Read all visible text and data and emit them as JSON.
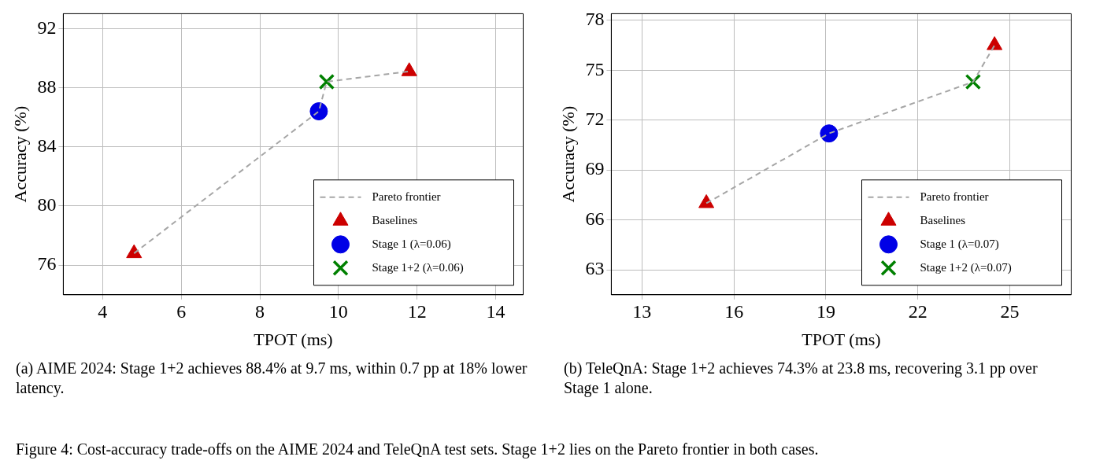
{
  "chart_data": [
    {
      "type": "scatter",
      "xlabel": "TPOT (ms)",
      "ylabel": "Accuracy (%)",
      "xlim": [
        3,
        14.7
      ],
      "xticks": [
        4,
        6,
        8,
        10,
        12,
        14
      ],
      "ylim": [
        74,
        93
      ],
      "yticks": [
        76,
        80,
        84,
        88,
        92
      ],
      "grid": true,
      "legend": "bottom right",
      "series": [
        {
          "name": "Pareto frontier",
          "type": "line",
          "line_style": "dashed",
          "marker": "none",
          "color": "#a6a6a6",
          "x": [
            4.8,
            9.5,
            9.7,
            11.8
          ],
          "values": [
            76.8,
            86.4,
            88.4,
            89.1
          ]
        },
        {
          "name": "Baselines",
          "type": "scatter",
          "marker": "triangle",
          "color": "#cc0000",
          "x": [
            4.8,
            11.8
          ],
          "values": [
            76.8,
            89.1
          ]
        },
        {
          "name": "Stage 1 (λ=0.06)",
          "type": "scatter",
          "marker": "circle",
          "color": "#0000e6",
          "x": [
            9.5
          ],
          "values": [
            86.4
          ]
        },
        {
          "name": "Stage 1+2 (λ=0.06)",
          "type": "scatter",
          "marker": "cross",
          "color": "#008000",
          "x": [
            9.7
          ],
          "values": [
            88.4
          ]
        }
      ],
      "annotations": [
        "(a) AIME 2024: Stage 1+2 achieves 88.4% at 9.7 ms, within 0.7 pp at 18% lower latency.",
        "Figure 4: Cost-accuracy trade-offs on the AIME 2024 and TeleQnA test sets. Stage 1+2 lies on the Pareto frontier in both cases."
      ]
    },
    {
      "type": "scatter",
      "xlabel": "TPOT (ms)",
      "ylabel": "Accuracy (%)",
      "xlim": [
        12,
        27
      ],
      "xticks": [
        13,
        16,
        19,
        22,
        25
      ],
      "ylim": [
        61.5,
        78.4
      ],
      "yticks": [
        63,
        66,
        69,
        72,
        75,
        78
      ],
      "grid": true,
      "legend": "bottom right",
      "series": [
        {
          "name": "Pareto frontier",
          "type": "line",
          "line_style": "dashed",
          "marker": "none",
          "color": "#a6a6a6",
          "x": [
            15.1,
            19.1,
            23.8,
            24.5
          ],
          "values": [
            67.0,
            71.2,
            74.3,
            76.5
          ]
        },
        {
          "name": "Baselines",
          "type": "scatter",
          "marker": "triangle",
          "color": "#cc0000",
          "x": [
            15.1,
            24.5
          ],
          "values": [
            67.0,
            76.5
          ]
        },
        {
          "name": "Stage 1 (λ=0.07)",
          "type": "scatter",
          "marker": "circle",
          "color": "#0000e6",
          "x": [
            19.1
          ],
          "values": [
            71.2
          ]
        },
        {
          "name": "Stage 1+2 (λ=0.07)",
          "type": "scatter",
          "marker": "cross",
          "color": "#008000",
          "x": [
            23.8
          ],
          "values": [
            74.3
          ]
        }
      ],
      "annotations": [
        "(b) TeleQnA: Stage 1+2 achieves 74.3% at 23.8 ms, recovering 3.1 pp over Stage 1 alone."
      ]
    }
  ]
}
